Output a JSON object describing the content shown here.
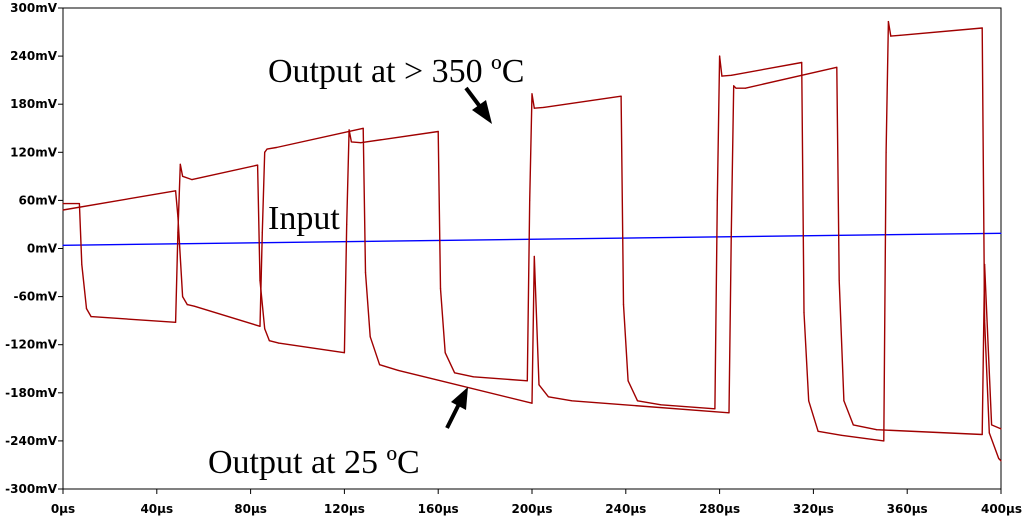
{
  "chart_data": {
    "type": "line",
    "x_unit": "µs",
    "y_unit": "mV",
    "xlim": [
      0,
      400
    ],
    "ylim": [
      -300,
      300
    ],
    "x_ticks": [
      "0µs",
      "40µs",
      "80µs",
      "120µs",
      "160µs",
      "200µs",
      "240µs",
      "280µs",
      "320µs",
      "360µs",
      "400µs"
    ],
    "x_tick_values": [
      0,
      40,
      80,
      120,
      160,
      200,
      240,
      280,
      320,
      360,
      400
    ],
    "y_ticks": [
      "300mV",
      "240mV",
      "180mV",
      "120mV",
      "60mV",
      "0mV",
      "-60mV",
      "-120mV",
      "-180mV",
      "-240mV",
      "-300mV"
    ],
    "y_tick_values": [
      300,
      240,
      180,
      120,
      60,
      0,
      -60,
      -120,
      -180,
      -240,
      -300
    ],
    "grid": false,
    "colors": {
      "input": "#0000ff",
      "output": "#a00000",
      "frame": "#000000",
      "background": "#ffffff"
    },
    "series": [
      {
        "name": "Input",
        "color": "#0000ff",
        "x": [
          0,
          400
        ],
        "y": [
          4,
          19
        ]
      },
      {
        "color": "#a00000",
        "x": [
          0,
          7,
          8,
          10,
          12,
          48,
          49,
          50,
          51,
          55,
          83,
          84,
          86,
          88,
          92,
          120,
          121,
          122,
          123,
          127,
          160,
          161,
          163,
          167,
          175,
          198,
          199,
          200,
          201,
          205,
          238,
          239,
          241,
          245,
          255,
          278,
          279,
          280,
          281,
          285,
          315,
          316,
          318,
          322,
          332,
          350,
          351,
          352,
          353,
          357,
          392,
          393,
          395,
          399,
          400
        ],
        "y": [
          56,
          56,
          -20,
          -75,
          -85,
          -92,
          20,
          105,
          90,
          86,
          104,
          -40,
          -100,
          -115,
          -118,
          -130,
          30,
          148,
          133,
          132,
          146,
          -50,
          -130,
          -155,
          -160,
          -165,
          60,
          193,
          175,
          176,
          190,
          -70,
          -165,
          -190,
          -195,
          -200,
          60,
          240,
          215,
          216,
          232,
          -80,
          -190,
          -228,
          -233,
          -240,
          120,
          283,
          265,
          266,
          275,
          -90,
          -230,
          -262,
          -265
        ]
      },
      {
        "color": "#a00000",
        "x": [
          0,
          48,
          49,
          51,
          53,
          56,
          84,
          85,
          86,
          87,
          91,
          128,
          129,
          131,
          135,
          143,
          200,
          201,
          203,
          207,
          217,
          284,
          285,
          286,
          287,
          291,
          330,
          331,
          333,
          337,
          347,
          392,
          393,
          396,
          400
        ],
        "y": [
          48,
          72,
          40,
          -60,
          -70,
          -72,
          -97,
          20,
          120,
          124,
          126,
          150,
          -30,
          -110,
          -145,
          -152,
          -193,
          -10,
          -170,
          -185,
          -190,
          -205,
          20,
          203,
          200,
          200,
          226,
          -40,
          -190,
          -220,
          -226,
          -232,
          -20,
          -220,
          -225
        ]
      }
    ],
    "annotations": [
      {
        "text": "Output at > 350 ºC"
      },
      {
        "text": "Input"
      },
      {
        "text": "Output at 25 ºC"
      }
    ]
  }
}
